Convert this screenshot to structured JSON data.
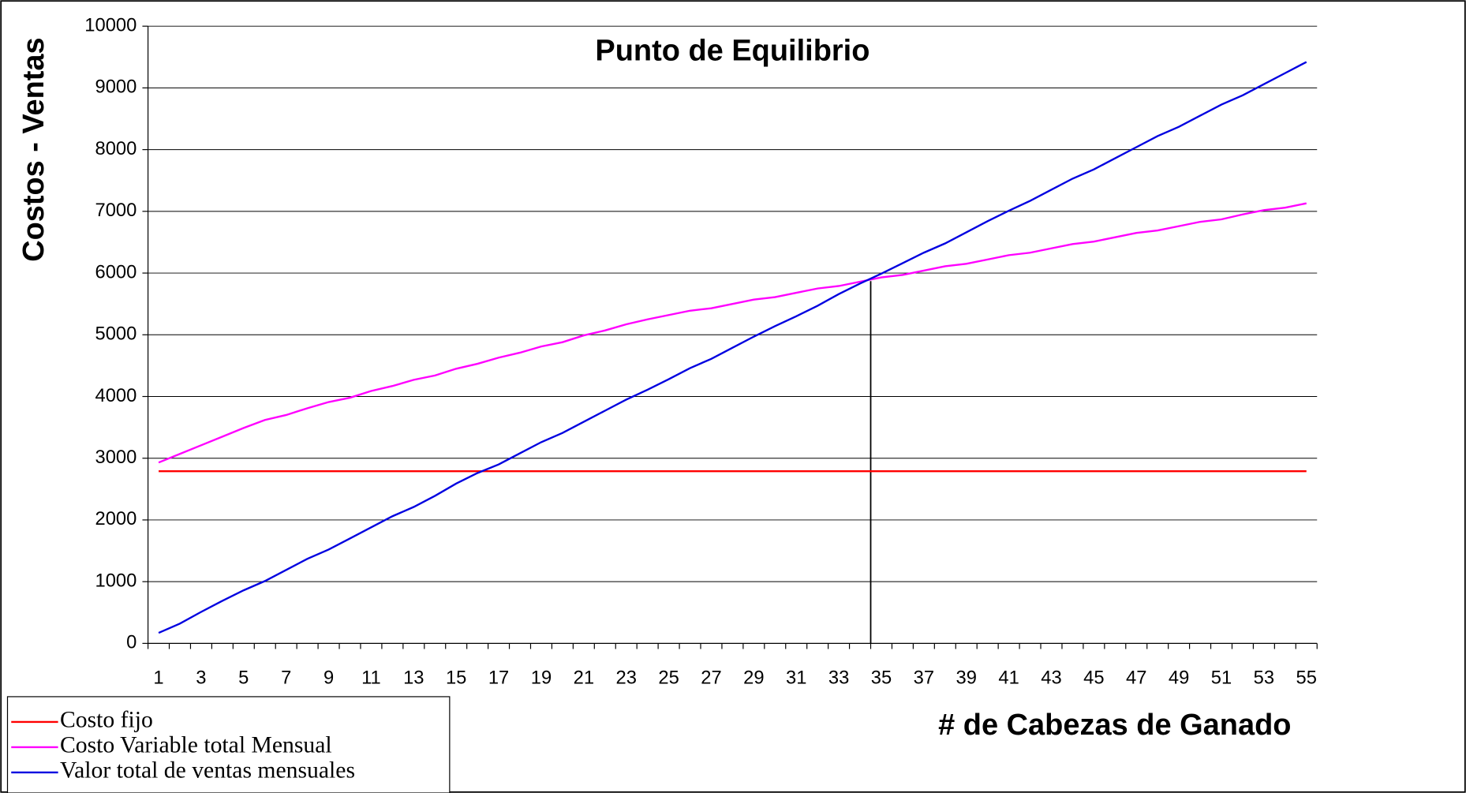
{
  "chart_data": {
    "type": "line",
    "title": "Punto de Equilibrio",
    "y_label": "Costos - Ventas",
    "x_label": "# de Cabezas de Ganado",
    "categories": [
      "1",
      null,
      "3",
      null,
      "5",
      null,
      "7",
      null,
      "9",
      null,
      "11",
      null,
      "13",
      null,
      "15",
      null,
      "17",
      null,
      "19",
      null,
      "21",
      null,
      "23",
      null,
      "25",
      null,
      "27",
      null,
      "29",
      null,
      "31",
      null,
      "33",
      null,
      "35",
      null,
      "37",
      null,
      "39",
      null,
      "41",
      null,
      "43",
      null,
      "45",
      null,
      "47",
      null,
      "49",
      null,
      "51",
      null,
      "53",
      null,
      "55"
    ],
    "series": [
      {
        "name": "Costo fijo",
        "color": "#ff0000",
        "values": [
          2790,
          2790,
          2790,
          2790,
          2790,
          2790,
          2790,
          2790,
          2790,
          2790,
          2790,
          2790,
          2790,
          2790,
          2790,
          2790,
          2790,
          2790,
          2790,
          2790,
          2790,
          2790,
          2790,
          2790,
          2790,
          2790,
          2790,
          2790,
          2790,
          2790,
          2790,
          2790,
          2790,
          2790,
          2790,
          2790,
          2790,
          2790,
          2790,
          2790,
          2790,
          2790,
          2790,
          2790,
          2790,
          2790,
          2790,
          2790,
          2790,
          2790,
          2790,
          2790,
          2790,
          2790,
          2790
        ]
      },
      {
        "name": "Costo Variable total Mensual",
        "color": "#ff00ff",
        "values": [
          2930,
          3070,
          3210,
          3350,
          3490,
          3620,
          3700,
          3810,
          3910,
          3980,
          4090,
          4170,
          4270,
          4340,
          4450,
          4530,
          4630,
          4710,
          4810,
          4880,
          4990,
          5070,
          5170,
          5250,
          5320,
          5390,
          5430,
          5500,
          5570,
          5610,
          5680,
          5750,
          5790,
          5860,
          5930,
          5970,
          6040,
          6110,
          6150,
          6220,
          6290,
          6330,
          6400,
          6470,
          6510,
          6580,
          6650,
          6690,
          6760,
          6830,
          6870,
          6950,
          7020,
          7060,
          7130
        ]
      },
      {
        "name": "Valor total de ventas mensuales",
        "color": "#0000e0",
        "values": [
          170,
          320,
          510,
          690,
          860,
          1010,
          1190,
          1370,
          1520,
          1700,
          1880,
          2060,
          2210,
          2390,
          2590,
          2760,
          2900,
          3080,
          3260,
          3410,
          3590,
          3770,
          3950,
          4110,
          4280,
          4460,
          4610,
          4790,
          4970,
          5140,
          5300,
          5470,
          5660,
          5830,
          5990,
          6160,
          6330,
          6480,
          6660,
          6840,
          7010,
          7170,
          7350,
          7530,
          7680,
          7860,
          8040,
          8220,
          8370,
          8550,
          8730,
          8880,
          9060,
          9240,
          9420
        ]
      }
    ],
    "breakeven": {
      "x": 34.5,
      "y": 5870
    },
    "ylim": [
      0,
      10000
    ],
    "yticks": [
      0,
      1000,
      2000,
      3000,
      4000,
      5000,
      6000,
      7000,
      8000,
      9000,
      10000
    ],
    "grid": true,
    "legend": "bottom-left"
  }
}
